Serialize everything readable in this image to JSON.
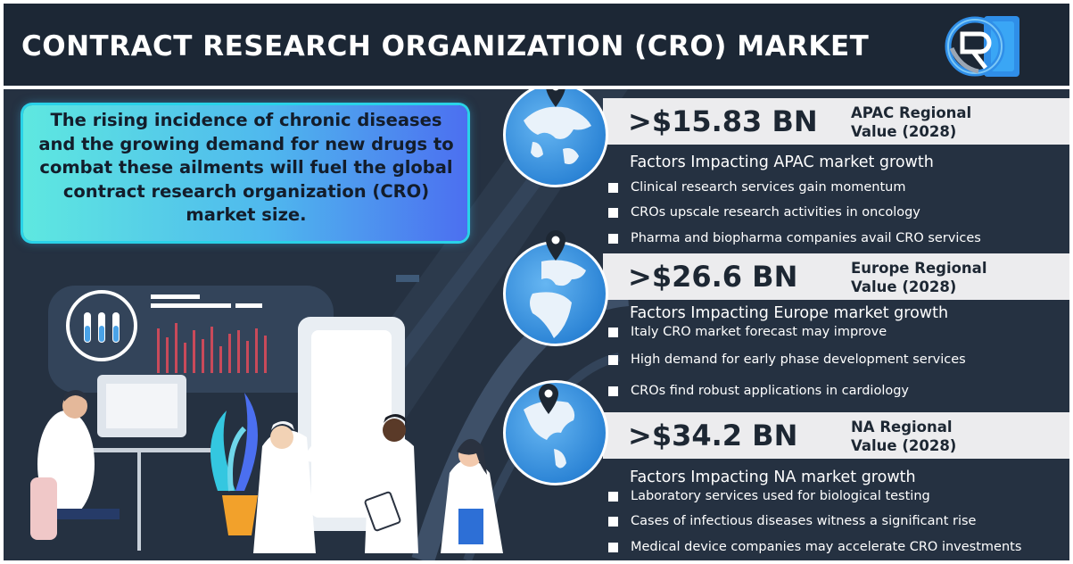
{
  "header": {
    "title": "CONTRACT RESEARCH ORGANIZATION (CRO) MARKET"
  },
  "intro": {
    "text": "The rising incidence of chronic diseases and the growing demand for new drugs to combat these ailments will fuel the global contract research organization (CRO) market size."
  },
  "regions": [
    {
      "value": ">$15.83 BN",
      "label_line1": "APAC Regional",
      "label_line2": "Value (2028)",
      "factors_title": "Factors Impacting APAC market growth",
      "factors": [
        "Clinical research services gain momentum",
        "CROs upscale research activities in oncology",
        "Pharma and biopharma companies avail CRO services"
      ]
    },
    {
      "value": ">$26.6 BN",
      "label_line1": "Europe Regional",
      "label_line2": "Value (2028)",
      "factors_title": "Factors Impacting Europe market growth",
      "factors": [
        "Italy CRO market forecast may improve",
        "High demand for early phase development services",
        "CROs find robust applications in cardiology"
      ]
    },
    {
      "value": ">$34.2 BN",
      "label_line1": "NA Regional",
      "label_line2": "Value (2028)",
      "factors_title": "Factors Impacting NA market growth",
      "factors": [
        "Laboratory services used for biological testing",
        "Cases of infectious diseases witness a significant rise",
        "Medical device companies may accelerate CRO investments"
      ]
    }
  ],
  "colors": {
    "background": "#253141",
    "header": "#1c2735",
    "accent_cyan": "#2ad2e8",
    "accent_blue": "#4c6ff0",
    "band": "#ececee"
  },
  "icons": [
    "logo-icon",
    "globe-icon",
    "location-pin-icon",
    "test-tubes-icon",
    "bullet-square-icon"
  ]
}
